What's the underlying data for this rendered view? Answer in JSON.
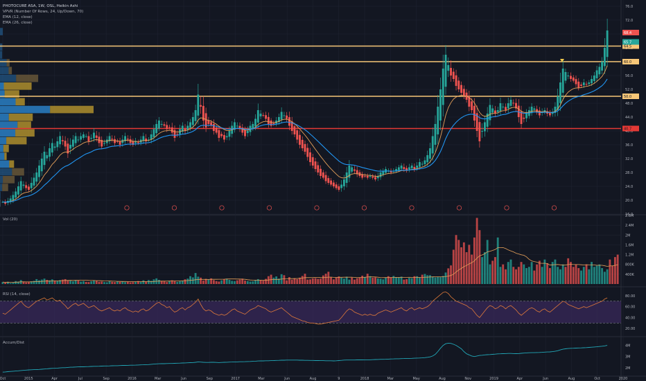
{
  "header": {
    "symbol_line": "PHOTOCURE ASA, 1W, OSL, Heikin Ashi",
    "indicators": [
      "VPVR (Number Of Rows, 24, Up/Down, 70)",
      "EMA (12, close)",
      "EMA (26, close)"
    ]
  },
  "panes": {
    "volume": {
      "label": "Vol (20)"
    },
    "rsi": {
      "label": "RSI (14, close)"
    },
    "accum": {
      "label": "Accum/Dist"
    }
  },
  "colors": {
    "background": "#131722",
    "grid": "#1e2230",
    "up": "#26a69a",
    "down": "#ef5350",
    "ema12": "#e6a15a",
    "ema26": "#2196f3",
    "hline": "#f7c778",
    "support_red": "#e53935",
    "vpvr_blue": "#2a7fc4",
    "vpvr_gold": "#b8962e",
    "vpvr_brown": "#6b5a3a",
    "rsi_band": "#3b2a5c",
    "rsi_line": "#e07a3a",
    "accum_line": "#22a8b8",
    "axis_text": "#b2b5be"
  },
  "chart_data": [
    {
      "type": "candlestick",
      "title": "PHOTOCURE ASA, 1W, OSL, Heikin Ashi",
      "x_ticks": [
        "Oct",
        "2015",
        "Apr",
        "Jul",
        "Sep",
        "2016",
        "Mar",
        "Jun",
        "Sep",
        "2017",
        "Mar",
        "Jun",
        "Aug",
        "9",
        "2018",
        "Mar",
        "May",
        "Aug",
        "Nov",
        "2019",
        "Apr",
        "Jun",
        "Aug",
        "Oct",
        "2020"
      ],
      "y_ticks": [
        16.0,
        20.0,
        24.0,
        28.0,
        32.0,
        36.0,
        40.0,
        44.0,
        48.0,
        52.0,
        56.0,
        60.0,
        64.0,
        68.0,
        72.0,
        76.0
      ],
      "ylim": [
        16,
        77
      ],
      "horizontal_lines": [
        {
          "value": 64.5,
          "label": "64.5",
          "color": "#f7c778"
        },
        {
          "value": 60.0,
          "label": "60.0",
          "color": "#f7c778"
        },
        {
          "value": 50.0,
          "label": "50.0",
          "color": "#f7c778"
        },
        {
          "value": 40.7,
          "label": "40.7",
          "color": "#e53935"
        }
      ],
      "price_labels": [
        {
          "value": 68.4,
          "label": "68.4",
          "color": "#ef5350"
        },
        {
          "value": 65.7,
          "label": "65.7",
          "color": "#26a69a"
        }
      ],
      "earnings_markers": 10,
      "closes": [
        19.5,
        19.0,
        19.8,
        20.5,
        21.5,
        22.5,
        24.0,
        25.5,
        24.5,
        23.5,
        23.0,
        25.0,
        26.5,
        28.0,
        30.0,
        32.0,
        34.0,
        33.0,
        35.0,
        36.5,
        35.5,
        37.0,
        38.5,
        37.0,
        35.5,
        33.5,
        36.0,
        37.5,
        38.5,
        37.5,
        38.5,
        39.0,
        38.5,
        37.0,
        38.0,
        39.5,
        38.0,
        36.5,
        35.5,
        36.5,
        37.5,
        38.5,
        37.5,
        36.5,
        37.0,
        36.0,
        37.5,
        38.5,
        37.5,
        36.5,
        36.0,
        37.0,
        36.5,
        37.5,
        38.5,
        37.0,
        37.5,
        39.0,
        40.5,
        42.0,
        43.0,
        42.0,
        41.5,
        40.5,
        41.0,
        39.5,
        38.0,
        39.0,
        40.5,
        41.5,
        40.0,
        41.5,
        42.5,
        44.0,
        46.0,
        50.5,
        47.0,
        43.0,
        41.0,
        42.0,
        41.5,
        40.0,
        39.5,
        38.0,
        38.5,
        37.5,
        38.5,
        40.0,
        41.5,
        42.5,
        41.5,
        40.5,
        39.5,
        38.5,
        40.0,
        41.5,
        42.0,
        43.5,
        46.0,
        45.0,
        44.5,
        43.5,
        42.0,
        41.5,
        42.0,
        43.0,
        44.0,
        45.5,
        44.5,
        43.5,
        41.5,
        40.0,
        39.0,
        37.5,
        36.0,
        35.0,
        34.0,
        32.5,
        31.0,
        30.0,
        29.0,
        28.0,
        27.0,
        26.5,
        25.5,
        25.0,
        24.5,
        24.0,
        23.5,
        23.0,
        24.5,
        26.0,
        28.0,
        30.0,
        29.5,
        28.5,
        27.5,
        27.0,
        26.5,
        27.0,
        26.5,
        27.0,
        26.5,
        26.0,
        27.0,
        28.0,
        28.5,
        29.0,
        28.5,
        28.0,
        28.5,
        29.0,
        29.5,
        30.0,
        29.0,
        28.5,
        29.5,
        30.0,
        29.0,
        30.0,
        31.0,
        30.5,
        31.5,
        33.0,
        35.0,
        38.5,
        42.0,
        47.0,
        52.0,
        58.0,
        62.0,
        59.0,
        56.0,
        55.0,
        53.0,
        52.0,
        51.0,
        50.0,
        49.0,
        47.0,
        46.0,
        43.0,
        40.0,
        37.0,
        40.0,
        42.5,
        45.0,
        47.5,
        46.5,
        45.0,
        46.0,
        48.0,
        47.0,
        46.0,
        48.0,
        49.0,
        48.0,
        46.5,
        44.0,
        42.0,
        43.5,
        45.0,
        46.0,
        47.0,
        46.5,
        45.5,
        44.5,
        45.5,
        46.0,
        45.0,
        44.5,
        45.5,
        47.0,
        50.0,
        54.0,
        58.0,
        57.0,
        56.0,
        55.0,
        54.5,
        53.5,
        52.5,
        53.0,
        54.0,
        53.5,
        54.0,
        55.0,
        56.0,
        57.5,
        58.5,
        60.0,
        64.0,
        69.0
      ]
    },
    {
      "type": "bar",
      "title": "Vol (20)",
      "y_ticks": [
        "400K",
        "800K",
        "1.2M",
        "1.6M",
        "2M",
        "2.4M",
        "2.8M"
      ],
      "ylim": [
        0,
        2800000
      ],
      "values": [
        80,
        60,
        90,
        40,
        70,
        120,
        100,
        160,
        90,
        70,
        80,
        110,
        130,
        200,
        150,
        180,
        220,
        170,
        150,
        190,
        140,
        120,
        160,
        180,
        200,
        150,
        130,
        110,
        160,
        140,
        100,
        120,
        90,
        80,
        110,
        150,
        130,
        90,
        100,
        80,
        70,
        120,
        90,
        80,
        100,
        90,
        110,
        80,
        90,
        70,
        80,
        100,
        120,
        90,
        150,
        110,
        160,
        130,
        190,
        230,
        170,
        120,
        110,
        80,
        130,
        150,
        120,
        90,
        110,
        140,
        190,
        220,
        320,
        270,
        450,
        300,
        260,
        140,
        210,
        180,
        230,
        160,
        120,
        100,
        150,
        200,
        220,
        170,
        130,
        120,
        150,
        180,
        220,
        140,
        120,
        100,
        110,
        150,
        200,
        170,
        140,
        210,
        320,
        380,
        260,
        310,
        220,
        400,
        360,
        150,
        280,
        180,
        240,
        200,
        260,
        330,
        420,
        180,
        190,
        230,
        240,
        210,
        220,
        350,
        420,
        500,
        280,
        190,
        270,
        310,
        260,
        220,
        300,
        180,
        260,
        180,
        230,
        260,
        340,
        290,
        420,
        320,
        260,
        270,
        230,
        220,
        190,
        260,
        320,
        270,
        330,
        280,
        280,
        300,
        180,
        200,
        250,
        240,
        320,
        320,
        280,
        380,
        410,
        360,
        360,
        310,
        270,
        290,
        280,
        330,
        470,
        640,
        760,
        1400,
        2000,
        1800,
        1500,
        1700,
        1300,
        1600,
        1200,
        1900,
        2700,
        2200,
        1100,
        1300,
        1800,
        800,
        950,
        1100,
        1900,
        700,
        800,
        600,
        900,
        1000,
        700,
        600,
        700,
        900,
        800,
        650,
        700,
        900,
        550,
        800,
        950,
        700,
        1000,
        850,
        650,
        900,
        1000,
        700,
        600,
        800,
        700,
        1050,
        900,
        700,
        800,
        650,
        550,
        700,
        800,
        600,
        900,
        700,
        750,
        800,
        650,
        500,
        600,
        1000,
        750,
        1100,
        1200
      ],
      "value_unit": "thousands"
    },
    {
      "type": "line",
      "title": "RSI (14, close)",
      "y_ticks": [
        20.0,
        40.0,
        60.0,
        80.0
      ],
      "ylim": [
        10,
        90
      ],
      "band": [
        30,
        70
      ],
      "values": [
        48,
        46,
        50,
        54,
        58,
        62,
        66,
        70,
        64,
        60,
        58,
        62,
        66,
        70,
        72,
        74,
        76,
        72,
        74,
        76,
        72,
        70,
        72,
        66,
        62,
        56,
        60,
        64,
        66,
        62,
        64,
        66,
        62,
        58,
        60,
        62,
        58,
        54,
        52,
        54,
        56,
        58,
        54,
        52,
        54,
        52,
        56,
        58,
        54,
        52,
        50,
        52,
        50,
        54,
        56,
        52,
        54,
        58,
        62,
        66,
        68,
        64,
        62,
        58,
        60,
        54,
        50,
        52,
        56,
        58,
        54,
        58,
        60,
        64,
        68,
        74,
        64,
        56,
        52,
        54,
        52,
        48,
        46,
        44,
        46,
        44,
        46,
        50,
        54,
        56,
        52,
        50,
        48,
        46,
        50,
        54,
        56,
        58,
        62,
        60,
        58,
        56,
        52,
        50,
        52,
        54,
        56,
        58,
        54,
        50,
        46,
        42,
        40,
        38,
        36,
        34,
        33,
        31,
        30,
        30,
        29,
        28,
        28,
        29,
        30,
        31,
        32,
        33,
        34,
        35,
        40,
        46,
        52,
        56,
        54,
        50,
        48,
        46,
        44,
        46,
        44,
        46,
        44,
        44,
        48,
        50,
        52,
        54,
        52,
        50,
        52,
        54,
        56,
        58,
        54,
        52,
        56,
        58,
        54,
        56,
        58,
        56,
        58,
        60,
        64,
        70,
        74,
        78,
        82,
        86,
        87,
        84,
        78,
        74,
        70,
        68,
        66,
        64,
        62,
        58,
        56,
        50,
        44,
        40,
        46,
        52,
        58,
        62,
        60,
        56,
        58,
        62,
        60,
        56,
        60,
        62,
        58,
        54,
        48,
        44,
        48,
        52,
        56,
        58,
        56,
        52,
        50,
        54,
        56,
        52,
        50,
        54,
        58,
        62,
        66,
        70,
        68,
        64,
        62,
        60,
        58,
        56,
        58,
        60,
        58,
        60,
        62,
        64,
        66,
        68,
        70,
        74,
        76
      ]
    },
    {
      "type": "line",
      "title": "Accum/Dist",
      "y_ticks": [
        "2M",
        "3M",
        "4M"
      ],
      "ylim": [
        1300000,
        4600000
      ],
      "value_unit": "millions",
      "values": [
        1.6,
        1.62,
        1.64,
        1.66,
        1.68,
        1.7,
        1.72,
        1.74,
        1.76,
        1.78,
        1.8,
        1.81,
        1.82,
        1.83,
        1.84,
        1.86,
        1.88,
        1.9,
        1.92,
        1.94,
        1.95,
        1.96,
        1.98,
        2.0,
        2.0,
        2.02,
        2.04,
        2.05,
        2.06,
        2.07,
        2.08,
        2.08,
        2.09,
        2.1,
        2.11,
        2.12,
        2.12,
        2.13,
        2.14,
        2.15,
        2.15,
        2.16,
        2.17,
        2.18,
        2.18,
        2.19,
        2.2,
        2.2,
        2.21,
        2.22,
        2.22,
        2.23,
        2.24,
        2.25,
        2.26,
        2.27,
        2.28,
        2.3,
        2.32,
        2.34,
        2.35,
        2.36,
        2.36,
        2.37,
        2.38,
        2.38,
        2.39,
        2.4,
        2.41,
        2.42,
        2.43,
        2.44,
        2.45,
        2.46,
        2.48,
        2.52,
        2.5,
        2.48,
        2.47,
        2.47,
        2.48,
        2.48,
        2.47,
        2.46,
        2.47,
        2.48,
        2.49,
        2.5,
        2.51,
        2.52,
        2.52,
        2.53,
        2.53,
        2.54,
        2.55,
        2.56,
        2.57,
        2.58,
        2.6,
        2.61,
        2.61,
        2.62,
        2.62,
        2.63,
        2.64,
        2.65,
        2.66,
        2.67,
        2.67,
        2.68,
        2.68,
        2.68,
        2.68,
        2.68,
        2.67,
        2.67,
        2.66,
        2.66,
        2.65,
        2.65,
        2.64,
        2.64,
        2.63,
        2.63,
        2.62,
        2.62,
        2.62,
        2.61,
        2.62,
        2.64,
        2.66,
        2.68,
        2.69,
        2.69,
        2.69,
        2.69,
        2.7,
        2.7,
        2.7,
        2.71,
        2.71,
        2.71,
        2.72,
        2.73,
        2.74,
        2.75,
        2.75,
        2.76,
        2.77,
        2.78,
        2.79,
        2.8,
        2.8,
        2.81,
        2.82,
        2.83,
        2.83,
        2.84,
        2.85,
        2.86,
        2.87,
        2.88,
        2.9,
        2.93,
        2.97,
        3.05,
        3.2,
        3.45,
        3.75,
        4.0,
        4.15,
        4.2,
        4.18,
        4.1,
        4.0,
        3.85,
        3.7,
        3.45,
        3.25,
        3.15,
        3.05,
        3.0,
        3.05,
        3.1,
        3.12,
        3.15,
        3.17,
        3.18,
        3.2,
        3.22,
        3.24,
        3.25,
        3.26,
        3.27,
        3.28,
        3.28,
        3.27,
        3.26,
        3.27,
        3.29,
        3.31,
        3.33,
        3.34,
        3.35,
        3.35,
        3.36,
        3.37,
        3.38,
        3.4,
        3.41,
        3.42,
        3.44,
        3.47,
        3.52,
        3.6,
        3.66,
        3.7,
        3.72,
        3.74,
        3.75,
        3.76,
        3.77,
        3.78,
        3.79,
        3.8,
        3.82,
        3.84,
        3.86,
        3.88,
        3.9,
        3.93,
        3.96,
        4.0
      ]
    }
  ]
}
